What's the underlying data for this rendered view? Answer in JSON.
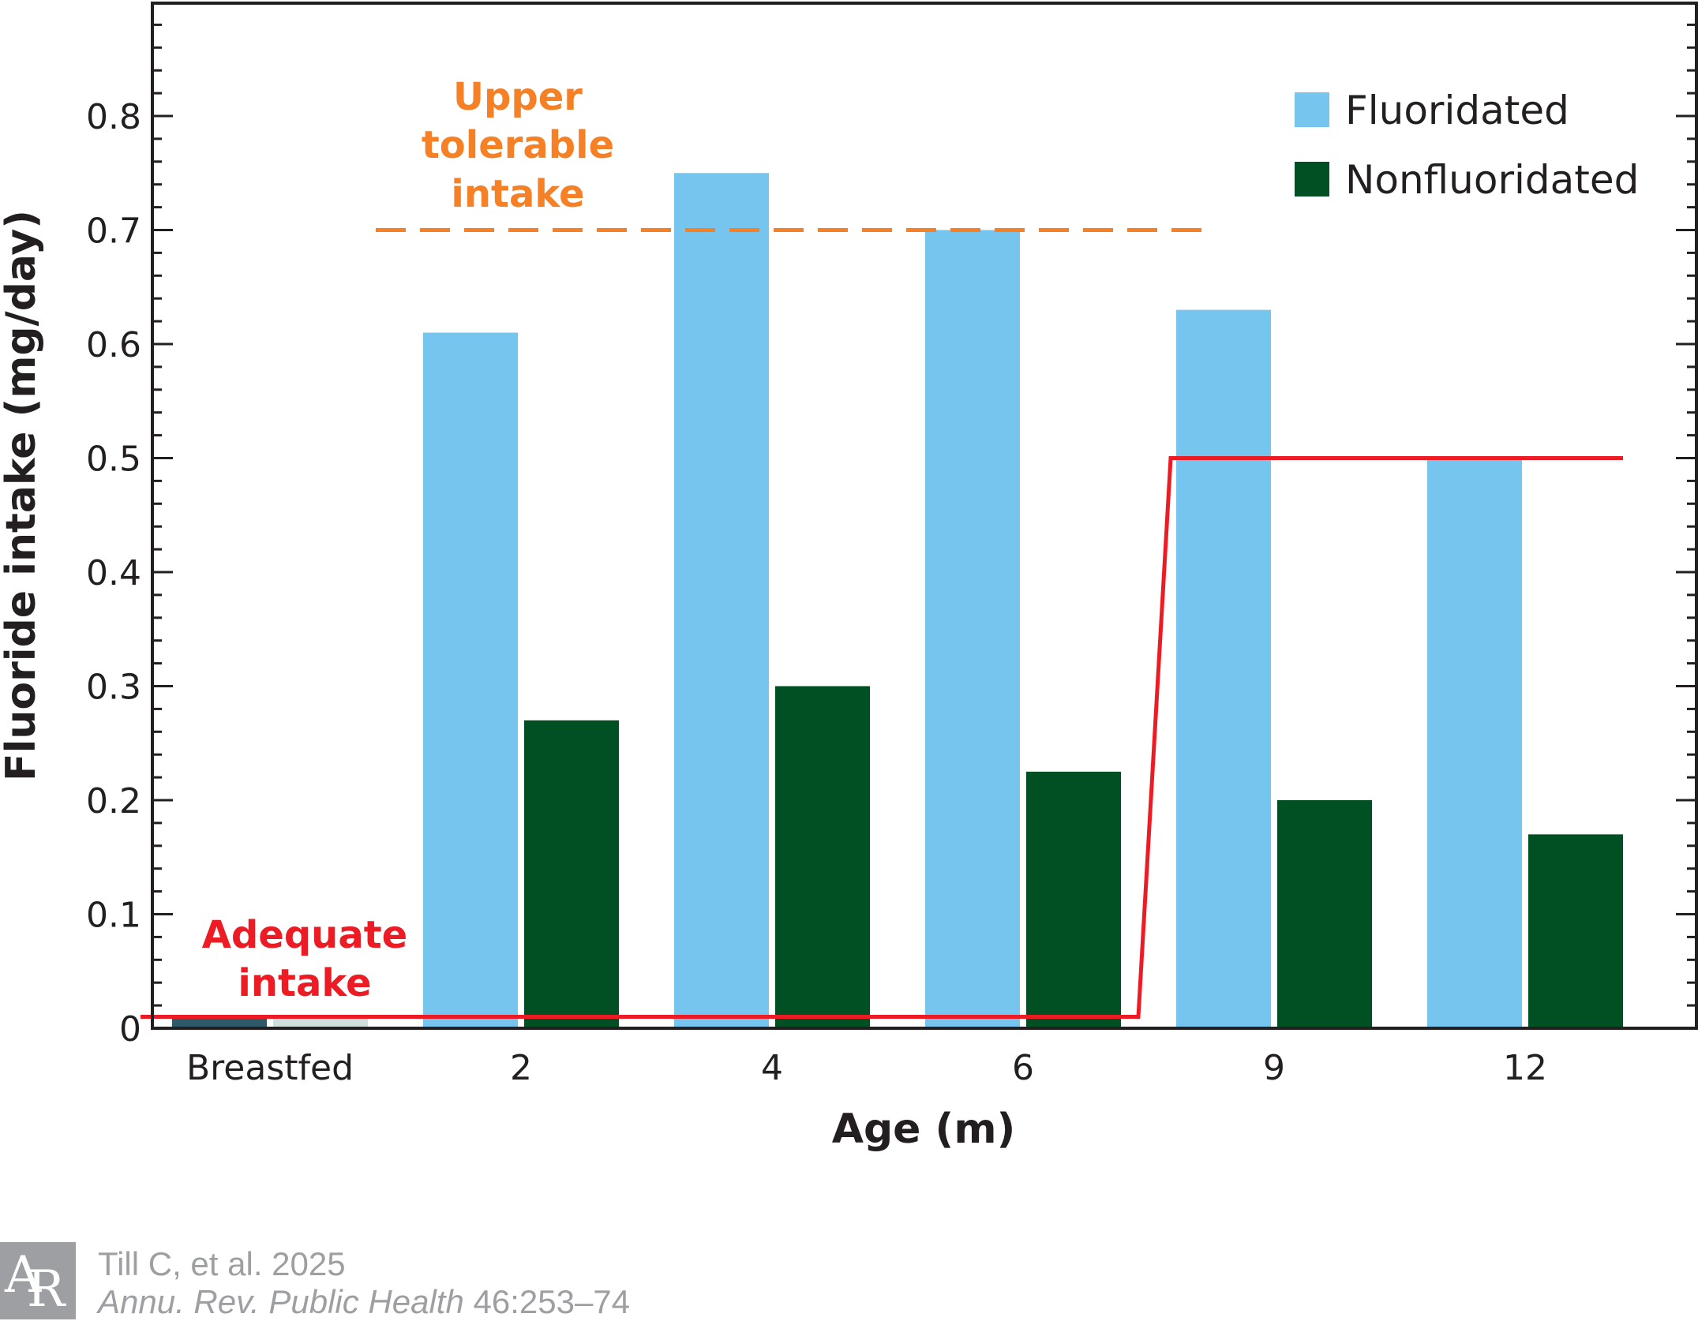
{
  "chart_data": {
    "type": "bar",
    "title": "",
    "xlabel": "Age (m)",
    "ylabel": "Fluoride intake (mg/day)",
    "categories": [
      "Breastfed",
      "2",
      "4",
      "6",
      "9",
      "12"
    ],
    "ylim": [
      0,
      0.9
    ],
    "yticks": [
      "0",
      "0.1",
      "0.2",
      "0.3",
      "0.4",
      "0.5",
      "0.6",
      "0.7",
      "0.8"
    ],
    "series": [
      {
        "name": "Fluoridated",
        "color": "#75c5ee",
        "breastfed_color": "#cfe0dc",
        "values": [
          0.01,
          0.61,
          0.75,
          0.7,
          0.63,
          0.5
        ]
      },
      {
        "name": "Nonfluoridated",
        "color": "#005024",
        "breastfed_color": "#2e5a6a",
        "values": [
          0.01,
          0.27,
          0.3,
          0.225,
          0.2,
          0.17
        ]
      }
    ],
    "reference_lines": [
      {
        "label_lines": [
          "Upper",
          "tolerable",
          "intake"
        ],
        "value": 0.7,
        "style": "dashed",
        "color": "#f58025",
        "from_category": "2",
        "to_category": "6"
      },
      {
        "label_lines": [
          "Adequate",
          "intake"
        ],
        "style": "solid",
        "color": "#ed1c24",
        "segments": [
          {
            "from_category": "Breastfed",
            "to_category": "6",
            "value": 0.01
          },
          {
            "from_category": "9",
            "to_category": "12",
            "value": 0.5
          }
        ]
      }
    ],
    "legend": {
      "position": "top-right",
      "entries": [
        "Fluoridated",
        "Nonfluoridated"
      ]
    },
    "grid": false
  },
  "credit": {
    "logo_letters": "AR",
    "citation": "Till C, et al. 2025",
    "journal": "Annu. Rev. Public Health",
    "pages": "46:253–74"
  }
}
